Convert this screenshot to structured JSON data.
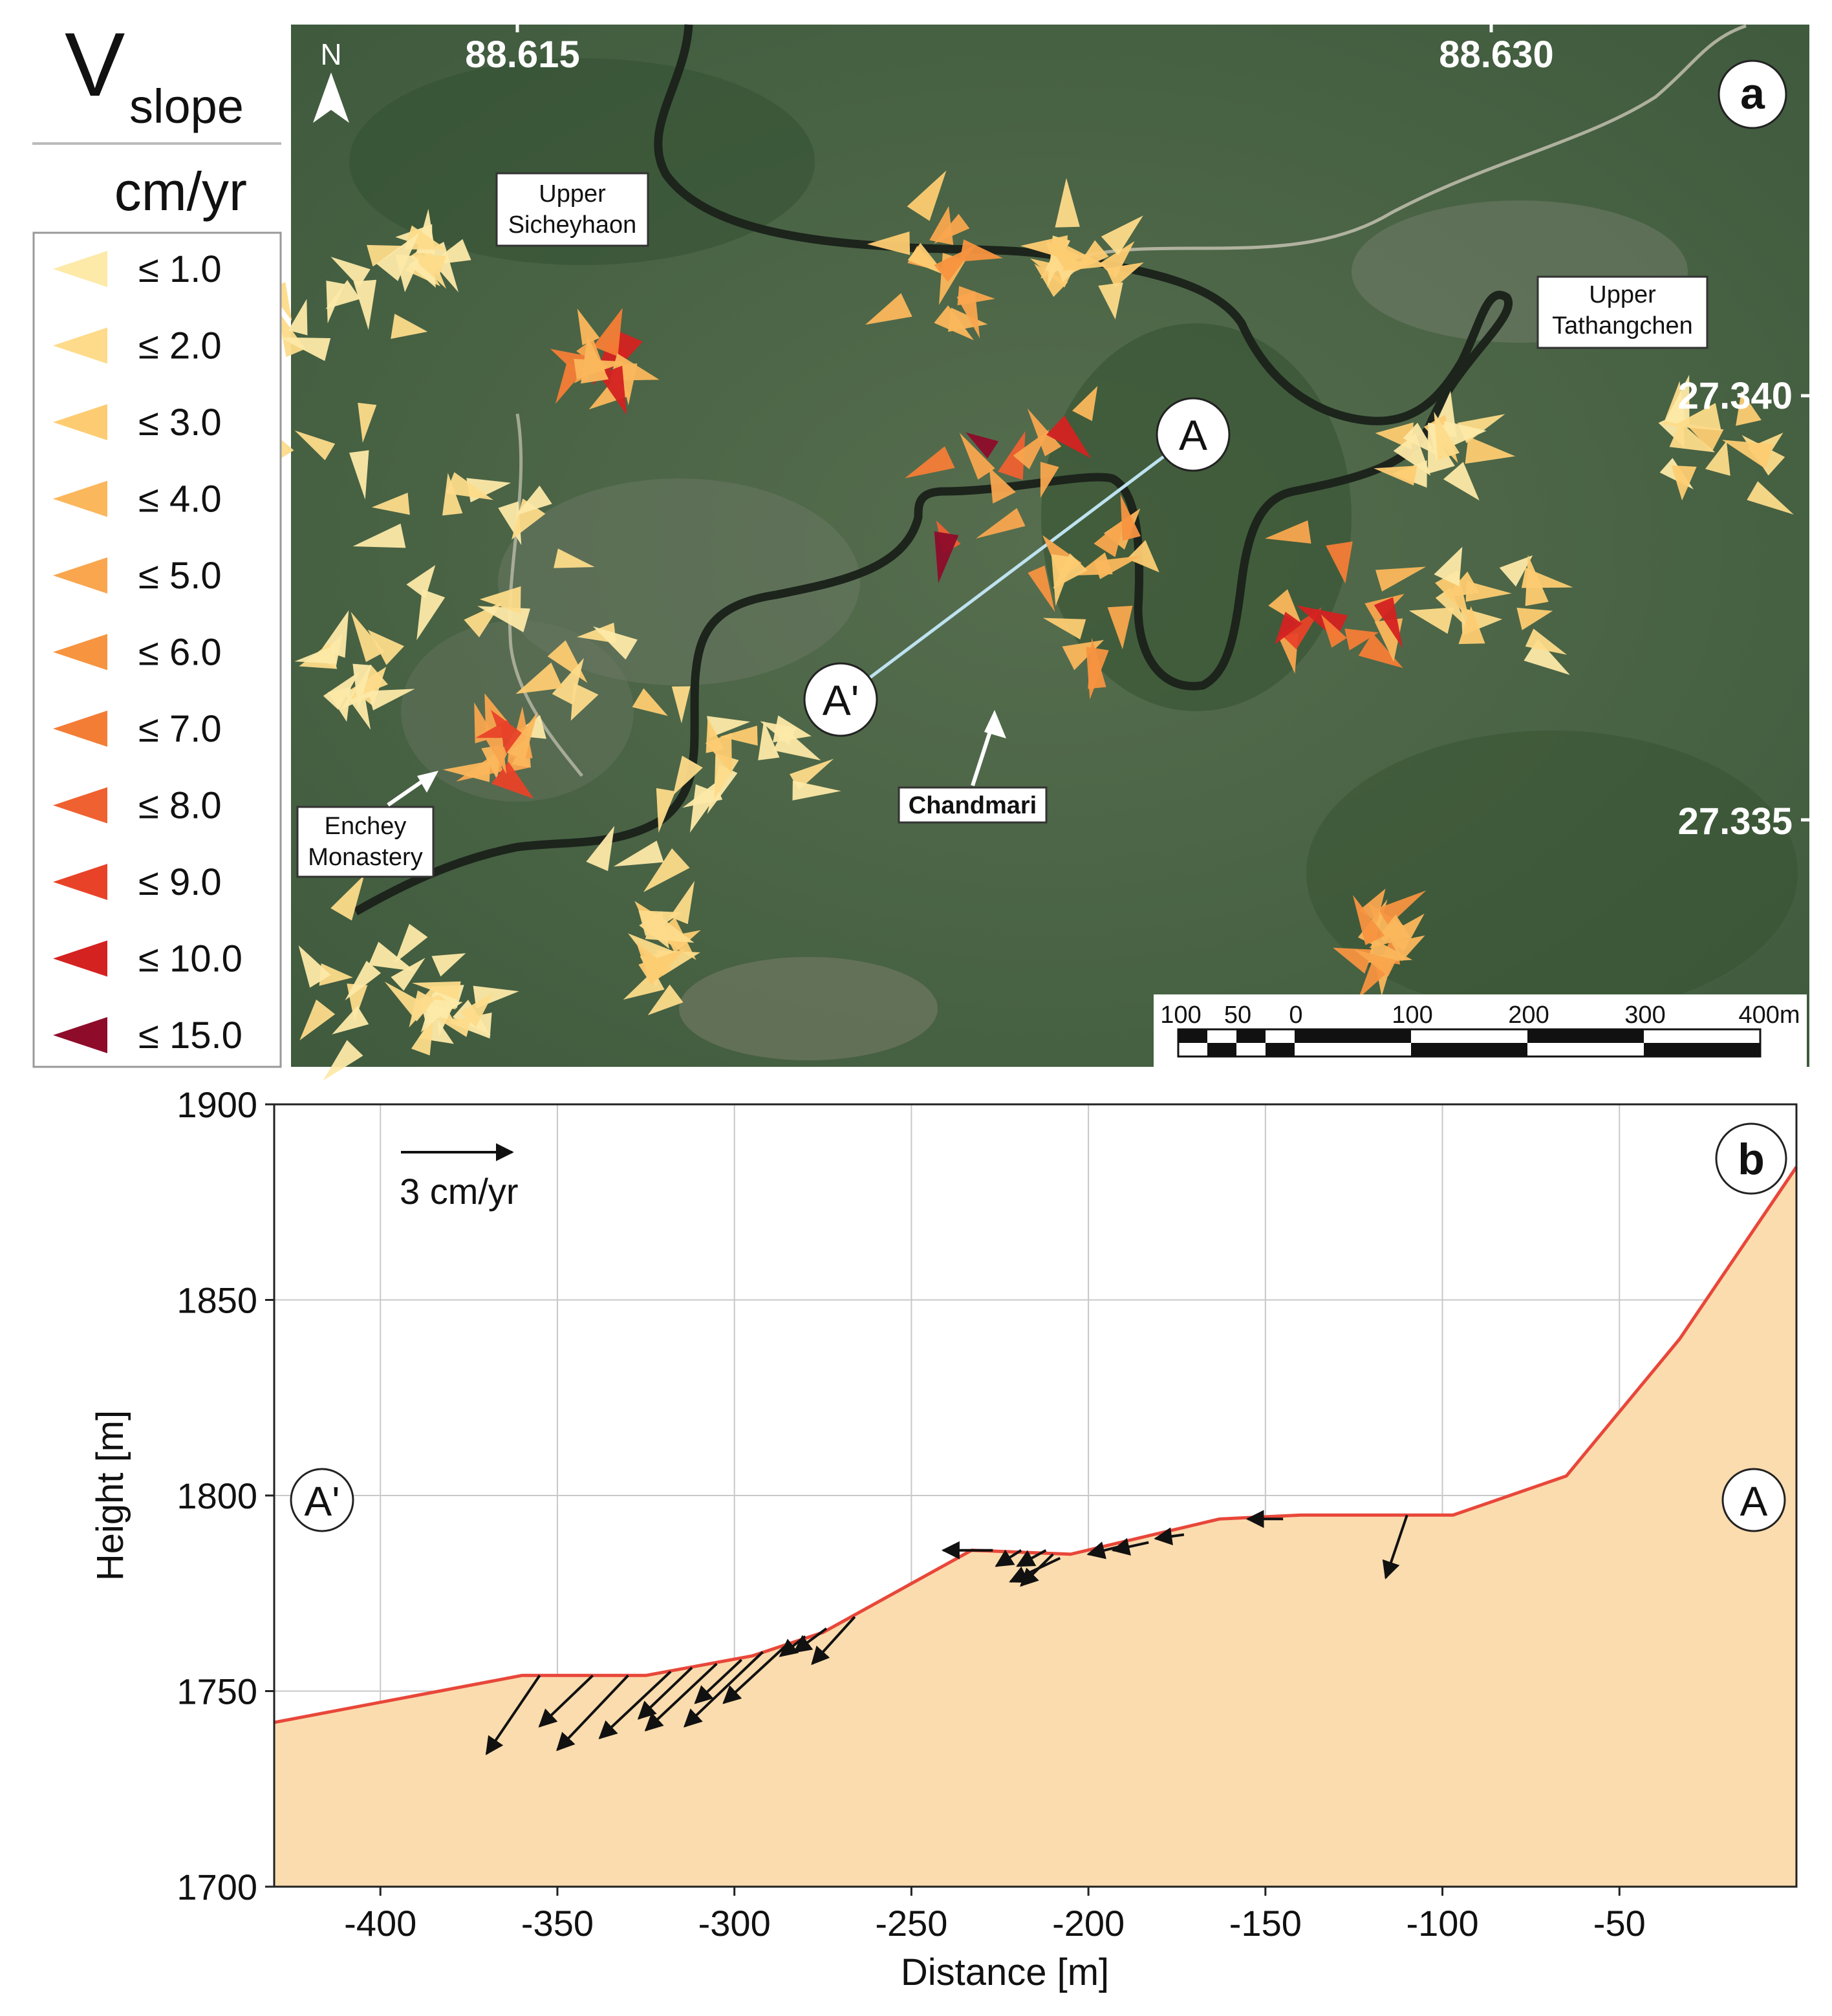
{
  "panel_a": {
    "legend": {
      "title_main": "V",
      "title_sub": "slope",
      "unit": "cm/yr",
      "items": [
        {
          "label": "≤ 1.0",
          "color": "#fde9a8"
        },
        {
          "label": "≤ 2.0",
          "color": "#fddb8a"
        },
        {
          "label": "≤ 3.0",
          "color": "#fdcc72"
        },
        {
          "label": "≤ 4.0",
          "color": "#fbb75c"
        },
        {
          "label": "≤ 5.0",
          "color": "#f9a64e"
        },
        {
          "label": "≤ 6.0",
          "color": "#f79440"
        },
        {
          "label": "≤ 7.0",
          "color": "#f47d36"
        },
        {
          "label": "≤ 8.0",
          "color": "#ef6130"
        },
        {
          "label": "≤ 9.0",
          "color": "#e84328"
        },
        {
          "label": "≤ 10.0",
          "color": "#d42221"
        },
        {
          "label": "≤ 15.0",
          "color": "#8e0c2a"
        }
      ]
    },
    "panel_letter": "a",
    "north_label": "N",
    "lon_labels": [
      "88.615",
      "88.630"
    ],
    "lat_labels": [
      "27.340",
      "27.335"
    ],
    "places": {
      "upper_sicheyhaon": [
        "Upper",
        "Sicheyhaon"
      ],
      "upper_tathangchen": [
        "Upper",
        "Tathangchen"
      ],
      "chandmari": "Chandmari",
      "enchey": [
        "Enchey",
        "Monastery"
      ]
    },
    "profile_labels": {
      "start": "A",
      "end": "A'"
    },
    "scale_bar": [
      "100",
      "50",
      "0",
      "100",
      "200",
      "300",
      "400m"
    ],
    "map_colors": {
      "base": "#4c6448",
      "road": "#1c241c",
      "profile_line": "#bfe2f0"
    }
  },
  "chart_data": {
    "type": "area",
    "panel_letter": "b",
    "xlabel": "Distance [m]",
    "ylabel": "Height [m]",
    "xlim": [
      -430,
      0
    ],
    "ylim": [
      1700,
      1900
    ],
    "x_ticks": [
      "-400",
      "-350",
      "-300",
      "-250",
      "-200",
      "-150",
      "-100",
      "-50"
    ],
    "y_ticks": [
      "1700",
      "1750",
      "1800",
      "1850",
      "1900"
    ],
    "grid": true,
    "profile": {
      "x": [
        -430,
        -360,
        -325,
        -295,
        -275,
        -255,
        -233,
        -205,
        -163,
        -140,
        -97,
        -65,
        -33,
        0
      ],
      "y": [
        1742,
        1754,
        1754,
        1759,
        1765,
        1775,
        1786,
        1785,
        1794,
        1795,
        1795,
        1805,
        1840,
        1884
      ],
      "line_color": "#e8473a",
      "fill_color": "#fbdcae"
    },
    "scale_arrow_label": "3 cm/yr",
    "end_labels": {
      "left": "A'",
      "right": "A"
    },
    "velocity_vectors": [
      {
        "x": -355,
        "y": 1754,
        "dx": -15,
        "dy": -20
      },
      {
        "x": -340,
        "y": 1754,
        "dx": -15,
        "dy": -13
      },
      {
        "x": -330,
        "y": 1754,
        "dx": -20,
        "dy": -19
      },
      {
        "x": -318,
        "y": 1755,
        "dx": -20,
        "dy": -17
      },
      {
        "x": -312,
        "y": 1756,
        "dx": -15,
        "dy": -13
      },
      {
        "x": -305,
        "y": 1757,
        "dx": -20,
        "dy": -17
      },
      {
        "x": -298,
        "y": 1758,
        "dx": -13,
        "dy": -11
      },
      {
        "x": -292,
        "y": 1760,
        "dx": -22,
        "dy": -19
      },
      {
        "x": -285,
        "y": 1762,
        "dx": -18,
        "dy": -15
      },
      {
        "x": -280,
        "y": 1764,
        "dx": -7,
        "dy": -5
      },
      {
        "x": -274,
        "y": 1766,
        "dx": -9,
        "dy": -6
      },
      {
        "x": -266,
        "y": 1769,
        "dx": -12,
        "dy": -12
      },
      {
        "x": -227,
        "y": 1786,
        "dx": -14,
        "dy": 0
      },
      {
        "x": -219,
        "y": 1786,
        "dx": -7,
        "dy": -4
      },
      {
        "x": -212,
        "y": 1786,
        "dx": -8,
        "dy": -4
      },
      {
        "x": -208,
        "y": 1784,
        "dx": -14,
        "dy": -6
      },
      {
        "x": -210,
        "y": 1785,
        "dx": -9,
        "dy": -8
      },
      {
        "x": -191,
        "y": 1787,
        "dx": -9,
        "dy": -2
      },
      {
        "x": -183,
        "y": 1788,
        "dx": -10,
        "dy": -2
      },
      {
        "x": -173,
        "y": 1790,
        "dx": -8,
        "dy": -1
      },
      {
        "x": -145,
        "y": 1794,
        "dx": -10,
        "dy": 0
      },
      {
        "x": -110,
        "y": 1795,
        "dx": -6,
        "dy": -16
      }
    ]
  }
}
